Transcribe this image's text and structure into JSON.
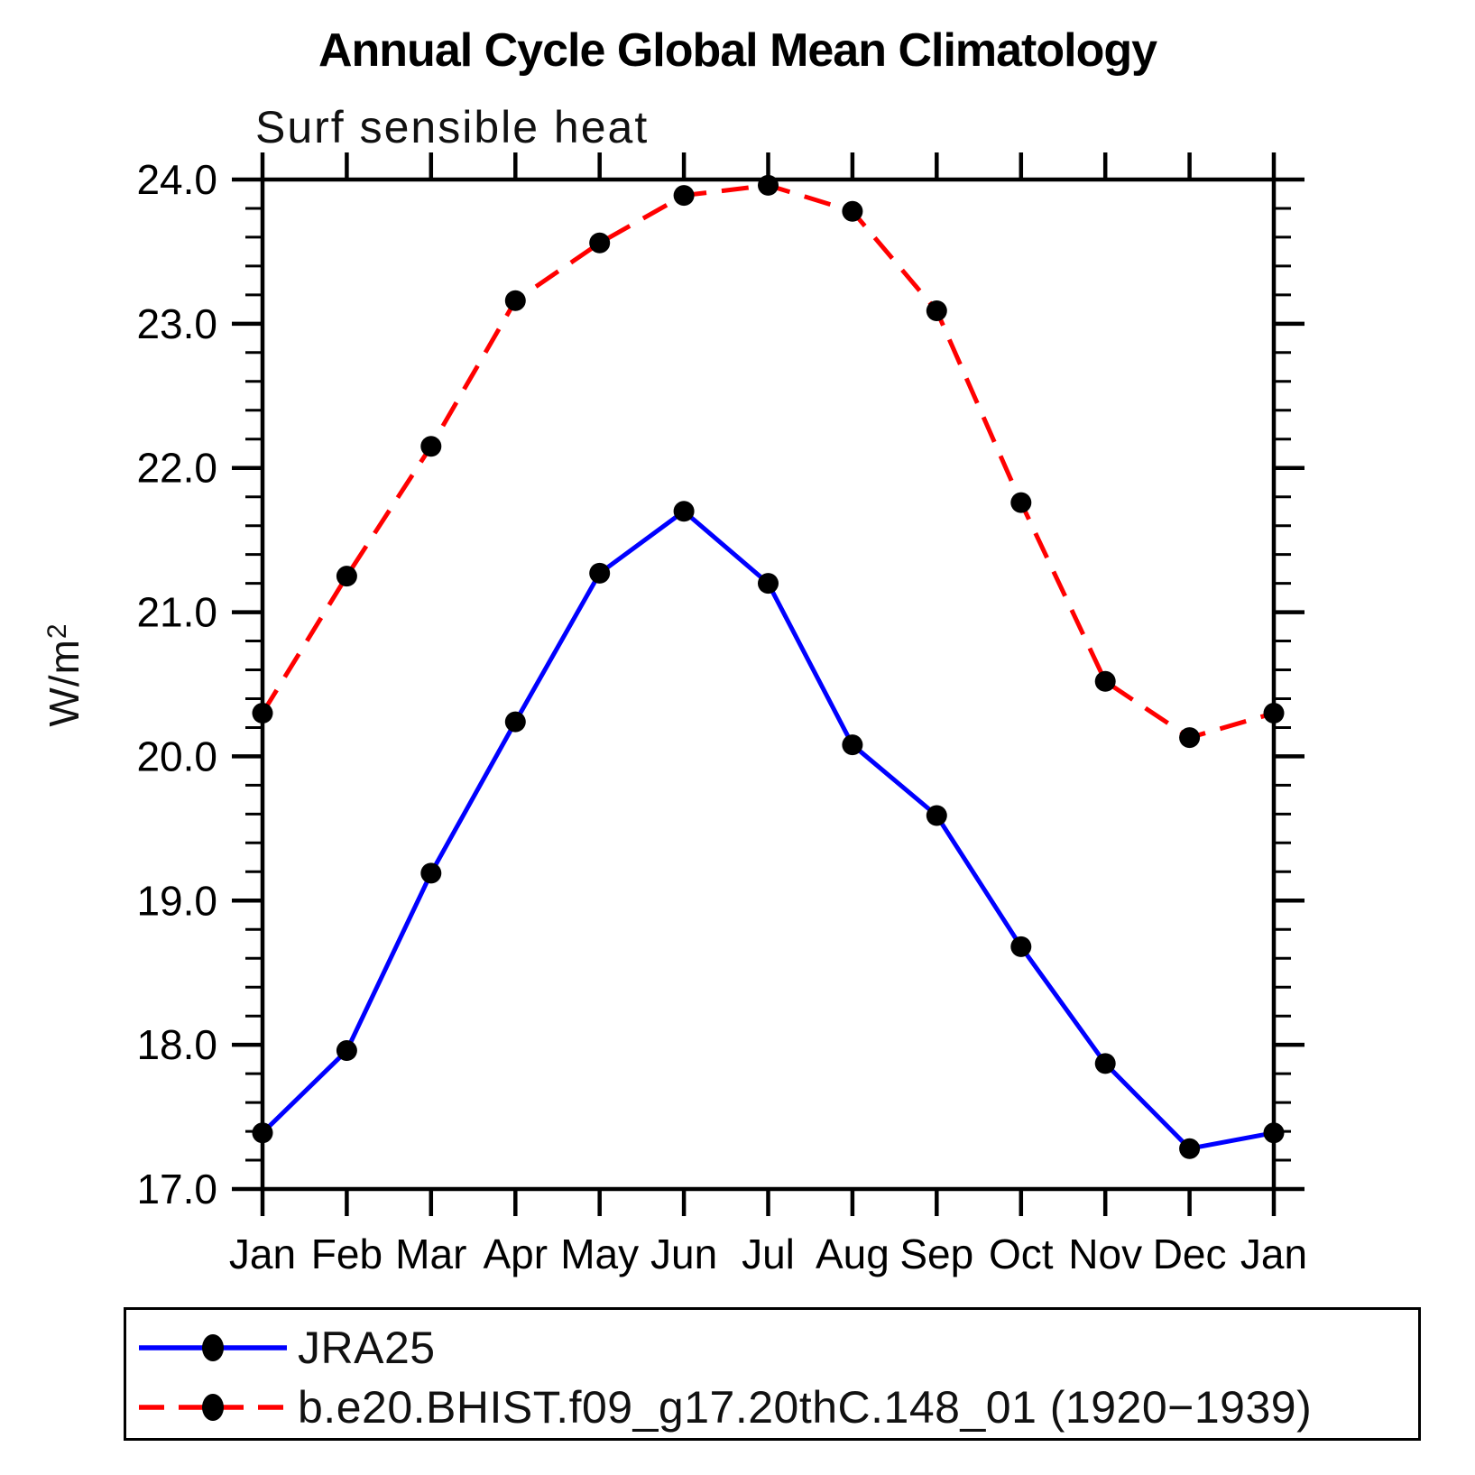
{
  "figure": {
    "title": "Annual Cycle Global Mean Climatology",
    "subtitle": "Surf sensible heat",
    "ylabel_base": "W/m",
    "ylabel_sup": "2"
  },
  "chart_data": {
    "type": "line",
    "title": "Annual Cycle Global Mean Climatology",
    "subtitle": "Surf sensible heat",
    "xlabel": "",
    "ylabel": "W/m^2",
    "x_tick_labels": [
      "Jan",
      "Feb",
      "Mar",
      "Apr",
      "May",
      "Jun",
      "Jul",
      "Aug",
      "Sep",
      "Oct",
      "Nov",
      "Dec",
      "Jan"
    ],
    "ylim": [
      17.0,
      24.0
    ],
    "y_major_ticks": [
      17,
      18,
      19,
      20,
      21,
      22,
      23,
      24
    ],
    "y_tick_labels": [
      "17.0",
      "18.0",
      "19.0",
      "20.0",
      "21.0",
      "22.0",
      "23.0",
      "24.0"
    ],
    "y_minor_step": 0.2,
    "grid": false,
    "legend_position": "bottom-left-box",
    "frame_color": "#000000",
    "marker": "filled-circle",
    "marker_color": "#000000",
    "series": [
      {
        "name": "JRA25",
        "color": "#0000ff",
        "style": "solid",
        "values": [
          17.39,
          17.96,
          19.19,
          20.24,
          21.27,
          21.7,
          21.2,
          20.08,
          19.59,
          18.68,
          17.87,
          17.28,
          17.39
        ]
      },
      {
        "name": "b.e20.BHIST.f09_g17.20thC.148_01 (1920−1939)",
        "color": "#ff0000",
        "style": "dashed",
        "values": [
          20.3,
          21.25,
          22.15,
          23.16,
          23.56,
          23.89,
          23.96,
          23.78,
          23.09,
          21.76,
          20.52,
          20.13,
          20.3
        ]
      }
    ]
  }
}
